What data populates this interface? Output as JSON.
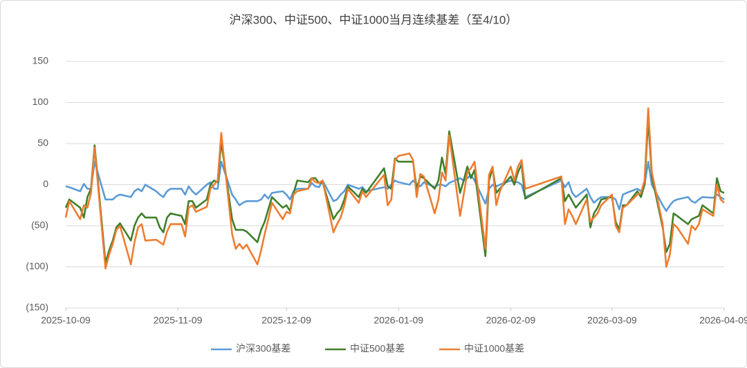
{
  "chart_data": {
    "type": "line",
    "title": "沪深300、中证500、中证1000当月连续基差（至4/10）",
    "x": [
      "2025-10-09",
      "2025-10-10",
      "2025-10-13",
      "2025-10-14",
      "2025-10-15",
      "2025-10-16",
      "2025-10-17",
      "2025-10-20",
      "2025-10-21",
      "2025-10-22",
      "2025-10-23",
      "2025-10-24",
      "2025-10-27",
      "2025-10-28",
      "2025-10-29",
      "2025-10-30",
      "2025-10-31",
      "2025-11-03",
      "2025-11-04",
      "2025-11-05",
      "2025-11-06",
      "2025-11-07",
      "2025-11-10",
      "2025-11-11",
      "2025-11-12",
      "2025-11-13",
      "2025-11-14",
      "2025-11-17",
      "2025-11-18",
      "2025-11-19",
      "2025-11-20",
      "2025-11-21",
      "2025-11-24",
      "2025-11-25",
      "2025-11-26",
      "2025-11-27",
      "2025-11-28",
      "2025-12-01",
      "2025-12-02",
      "2025-12-03",
      "2025-12-04",
      "2025-12-05",
      "2025-12-08",
      "2025-12-09",
      "2025-12-10",
      "2025-12-11",
      "2025-12-12",
      "2025-12-15",
      "2025-12-16",
      "2025-12-17",
      "2025-12-18",
      "2025-12-19",
      "2025-12-22",
      "2025-12-23",
      "2025-12-24",
      "2025-12-25",
      "2025-12-26",
      "2025-12-29",
      "2025-12-30",
      "2025-12-31",
      "2026-01-05",
      "2026-01-06",
      "2026-01-07",
      "2026-01-08",
      "2026-01-09",
      "2026-01-12",
      "2026-01-13",
      "2026-01-14",
      "2026-01-15",
      "2026-01-16",
      "2026-01-19",
      "2026-01-20",
      "2026-01-21",
      "2026-01-22",
      "2026-01-23",
      "2026-01-26",
      "2026-01-27",
      "2026-01-28",
      "2026-01-29",
      "2026-01-30",
      "2026-02-02",
      "2026-02-03",
      "2026-02-04",
      "2026-02-05",
      "2026-02-06",
      "2026-02-09",
      "2026-02-10",
      "2026-02-11",
      "2026-02-12",
      "2026-02-13",
      "2026-02-23",
      "2026-02-24",
      "2026-02-25",
      "2026-02-26",
      "2026-02-27",
      "2026-03-02",
      "2026-03-03",
      "2026-03-04",
      "2026-03-05",
      "2026-03-06",
      "2026-03-09",
      "2026-03-10",
      "2026-03-11",
      "2026-03-12",
      "2026-03-13",
      "2026-03-16",
      "2026-03-17",
      "2026-03-18",
      "2026-03-19",
      "2026-03-20",
      "2026-03-23",
      "2026-03-24",
      "2026-03-25",
      "2026-03-26",
      "2026-03-27",
      "2026-03-30",
      "2026-03-31",
      "2026-04-01",
      "2026-04-02",
      "2026-04-03",
      "2026-04-06",
      "2026-04-07",
      "2026-04-08",
      "2026-04-09"
    ],
    "series": [
      {
        "name": "沪深300基差",
        "color": "#5b9bd5",
        "values": [
          -2,
          -3,
          -8,
          1,
          -5,
          -5,
          28,
          -18,
          -18,
          -18,
          -14,
          -12,
          -15,
          -8,
          -5,
          -8,
          0,
          -8,
          -12,
          -15,
          -8,
          -5,
          -5,
          -12,
          -2,
          -8,
          -12,
          0,
          3,
          -5,
          -5,
          28,
          -12,
          -18,
          -25,
          -22,
          -20,
          -20,
          -18,
          -12,
          -17,
          -10,
          -8,
          -12,
          -18,
          -8,
          -5,
          -5,
          2,
          -2,
          -3,
          5,
          -20,
          -18,
          -12,
          -8,
          0,
          -5,
          -3,
          -8,
          -3,
          -5,
          0,
          5,
          3,
          0,
          5,
          0,
          -2,
          3,
          -3,
          0,
          0,
          -2,
          2,
          8,
          5,
          8,
          12,
          5,
          -23,
          -5,
          0,
          -2,
          0,
          5,
          3,
          3,
          0,
          -15,
          5,
          -3,
          3,
          -10,
          -15,
          -5,
          -15,
          -22,
          -18,
          -15,
          -15,
          -18,
          -30,
          -12,
          -10,
          -5,
          -8,
          0,
          28,
          0,
          -25,
          -32,
          -25,
          -20,
          -18,
          -15,
          -20,
          -22,
          -18,
          -15,
          -16,
          -12,
          -15,
          -18
        ]
      },
      {
        "name": "中证500基差",
        "color": "#3f7f2a",
        "values": [
          -28,
          -18,
          -28,
          -40,
          -15,
          -5,
          48,
          -95,
          -80,
          -68,
          -52,
          -47,
          -68,
          -50,
          -40,
          -35,
          -40,
          -40,
          -52,
          -58,
          -40,
          -35,
          -38,
          -48,
          -20,
          -20,
          -28,
          -18,
          0,
          5,
          3,
          52,
          -42,
          -55,
          -55,
          -55,
          -57,
          -70,
          -55,
          -45,
          -30,
          -15,
          -28,
          -25,
          -32,
          -10,
          5,
          3,
          8,
          8,
          2,
          3,
          -42,
          -35,
          -30,
          -18,
          -2,
          -15,
          -5,
          -10,
          20,
          -2,
          -5,
          32,
          28,
          28,
          28,
          -5,
          10,
          8,
          -5,
          5,
          33,
          13,
          65,
          -10,
          5,
          22,
          8,
          18,
          -87,
          5,
          20,
          -10,
          -5,
          10,
          0,
          15,
          25,
          -17,
          8,
          -20,
          -12,
          -20,
          -28,
          -12,
          -52,
          -35,
          -28,
          -18,
          -15,
          -45,
          -55,
          -25,
          -25,
          -8,
          -15,
          0,
          80,
          10,
          -52,
          -82,
          -72,
          -35,
          -38,
          -48,
          -42,
          -40,
          -38,
          -25,
          -35,
          8,
          -8,
          -10
        ]
      },
      {
        "name": "中证1000基差",
        "color": "#ed7d31",
        "values": [
          -40,
          -20,
          -42,
          -25,
          -28,
          -10,
          45,
          -102,
          -85,
          -72,
          -55,
          -50,
          -97,
          -70,
          -52,
          -48,
          -68,
          -67,
          -70,
          -73,
          -57,
          -48,
          -48,
          -63,
          -28,
          -25,
          -33,
          -27,
          -5,
          0,
          5,
          63,
          -60,
          -78,
          -72,
          -78,
          -73,
          -97,
          -80,
          -60,
          -42,
          -22,
          -42,
          -33,
          -35,
          -12,
          -8,
          -5,
          8,
          3,
          2,
          5,
          -58,
          -48,
          -40,
          -25,
          -5,
          -22,
          -8,
          -15,
          12,
          -25,
          -18,
          30,
          35,
          38,
          30,
          -15,
          13,
          10,
          -35,
          -18,
          15,
          5,
          60,
          -38,
          -12,
          15,
          20,
          28,
          -78,
          12,
          22,
          -25,
          -8,
          22,
          5,
          22,
          30,
          -5,
          10,
          -48,
          -30,
          -38,
          -48,
          -18,
          -45,
          -40,
          -35,
          -25,
          -12,
          -50,
          -58,
          -28,
          -25,
          -12,
          -10,
          5,
          93,
          15,
          -48,
          -100,
          -85,
          -48,
          -52,
          -72,
          -50,
          -55,
          -48,
          -30,
          -38,
          0,
          -18,
          -22
        ]
      }
    ],
    "xlim": [
      "2025-10-09",
      "2026-04-09"
    ],
    "xticks": [
      "2025-10-09",
      "2025-11-09",
      "2025-12-09",
      "2026-01-09",
      "2026-02-09",
      "2026-03-09",
      "2026-04-09"
    ],
    "ylim": [
      -150,
      150
    ],
    "yticks": [
      {
        "value": -150,
        "label": "(150)"
      },
      {
        "value": -100,
        "label": "(100)"
      },
      {
        "value": -50,
        "label": "(50)"
      },
      0,
      50,
      100,
      150
    ],
    "negative_tick_color": "#c00000",
    "grid": true,
    "legend": "bottom"
  }
}
